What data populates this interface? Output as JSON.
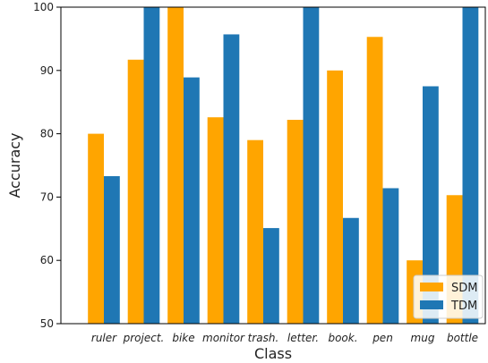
{
  "chart_data": {
    "type": "bar",
    "categories": [
      "ruler",
      "project.",
      "bike",
      "monitor",
      "trash.",
      "letter.",
      "book.",
      "pen",
      "mug",
      "bottle"
    ],
    "series": [
      {
        "name": "SDM",
        "color": "#FFA500",
        "values": [
          80.0,
          91.7,
          100.0,
          82.6,
          79.0,
          82.2,
          90.0,
          95.3,
          60.0,
          70.3
        ]
      },
      {
        "name": "TDM",
        "color": "#1F77B4",
        "values": [
          73.3,
          100.0,
          88.9,
          95.7,
          65.1,
          100.0,
          66.7,
          71.4,
          87.5,
          100.0
        ]
      }
    ],
    "xlabel": "Class",
    "ylabel": "Accuracy",
    "ylim": [
      50,
      100
    ],
    "yticks": [
      50,
      60,
      70,
      80,
      90,
      100
    ],
    "grid": false,
    "legend_position": "bottom-right"
  }
}
